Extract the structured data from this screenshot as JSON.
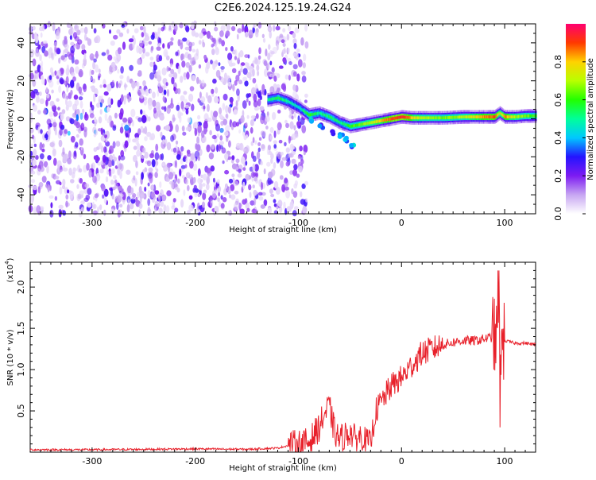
{
  "figure": {
    "title": "C2E6.2024.125.19.24.G24"
  },
  "chart_data": [
    {
      "type": "heatmap",
      "xlabel": "Height of straight line (km)",
      "ylabel": "Frequency (Hz)",
      "xlim": [
        -360,
        130
      ],
      "ylim": [
        -50,
        50
      ],
      "xticks": [
        -300,
        -200,
        -100,
        0,
        100
      ],
      "yticks": [
        -40,
        -20,
        0,
        20,
        40
      ],
      "colorbar": {
        "label": "Normalized spectral amplitude",
        "range": [
          0.0,
          1.0
        ],
        "ticks": [
          0.0,
          0.2,
          0.4,
          0.6,
          0.8
        ],
        "colormap": "white-purple-blue-cyan-green-yellow-red-magenta"
      },
      "noise_region_x": [
        -360,
        -100
      ],
      "peak_track": {
        "x": [
          -130,
          -120,
          -110,
          -100,
          -90,
          -80,
          -70,
          -60,
          -50,
          -40,
          -30,
          -20,
          -10,
          0,
          10,
          20,
          40,
          60,
          80,
          90,
          95,
          100,
          110,
          120,
          130
        ],
        "y": [
          10,
          11,
          9,
          6,
          2,
          3,
          1,
          -2,
          -4,
          -3,
          -2,
          -1,
          0,
          1,
          0.5,
          0.5,
          0.5,
          1,
          1,
          1,
          3,
          1,
          1,
          1.5,
          1.5
        ],
        "amplitude": [
          0.5,
          0.55,
          0.5,
          0.45,
          0.6,
          0.5,
          0.55,
          0.5,
          0.6,
          0.65,
          0.7,
          0.8,
          0.9,
          0.95,
          0.8,
          0.7,
          0.65,
          0.7,
          0.85,
          0.9,
          0.7,
          0.85,
          0.7,
          0.65,
          0.6
        ]
      },
      "side_track": {
        "x": [
          -90,
          -80,
          -70,
          -60,
          -55,
          -50
        ],
        "y": [
          -2,
          -5,
          -8,
          -10,
          -12,
          -15
        ]
      },
      "grid": false
    },
    {
      "type": "line",
      "xlabel": "Height of straight line (km)",
      "ylabel": "SNR (10 * v/v)",
      "y_multiplier_label": "(x10",
      "y_multiplier_exp": "4",
      "y_multiplier_close": ")",
      "xlim": [
        -360,
        130
      ],
      "ylim": [
        0,
        2.3
      ],
      "xticks": [
        -300,
        -200,
        -100,
        0,
        100
      ],
      "yticks": [
        0.5,
        1.0,
        1.5,
        2.0
      ],
      "ytick_labels": [
        "0.5",
        "1.0",
        "1.5",
        "2.0"
      ],
      "series": [
        {
          "color": "#e8202a",
          "x": [
            -360,
            -300,
            -250,
            -200,
            -150,
            -120,
            -110,
            -100,
            -90,
            -80,
            -75,
            -70,
            -65,
            -60,
            -55,
            -50,
            -45,
            -40,
            -35,
            -30,
            -25,
            -20,
            -10,
            0,
            10,
            20,
            30,
            40,
            50,
            60,
            70,
            80,
            90,
            95,
            100,
            110,
            120,
            130
          ],
          "y": [
            0.03,
            0.03,
            0.035,
            0.04,
            0.035,
            0.05,
            0.08,
            0.1,
            0.12,
            0.3,
            0.45,
            0.55,
            0.25,
            0.15,
            0.2,
            0.25,
            0.15,
            0.2,
            0.15,
            0.1,
            0.5,
            0.6,
            0.8,
            0.9,
            1.05,
            1.2,
            1.25,
            1.3,
            1.33,
            1.35,
            1.35,
            1.37,
            1.4,
            1.2,
            1.35,
            1.32,
            1.32,
            1.3
          ]
        }
      ],
      "grid": false
    }
  ]
}
